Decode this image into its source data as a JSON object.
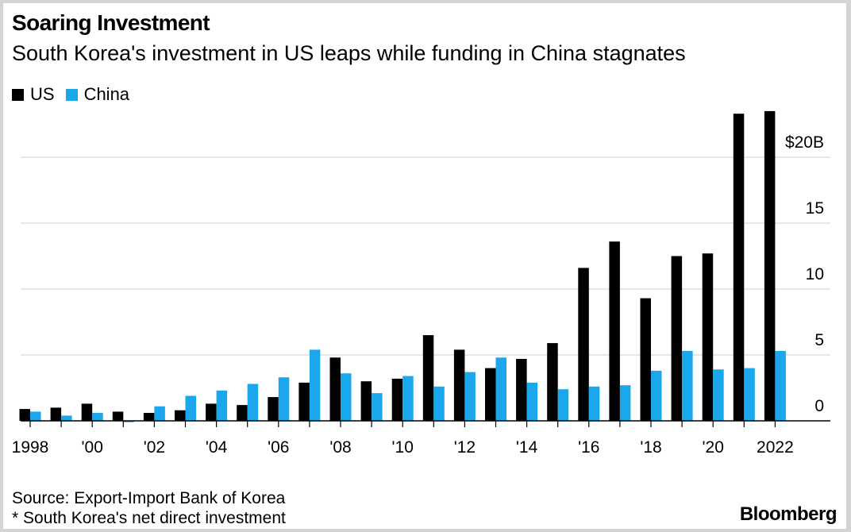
{
  "title": "Soaring Investment",
  "subtitle": "South Korea's investment in US leaps while funding in China stagnates",
  "legend": [
    {
      "label": "US",
      "color": "#000000"
    },
    {
      "label": "China",
      "color": "#1aa7ec"
    }
  ],
  "source": "Source: Export-Import Bank of Korea",
  "note": "* South Korea's net direct investment",
  "brand": "Bloomberg",
  "chart_data": {
    "type": "bar",
    "categories": [
      "1998",
      "1999",
      "2000",
      "2001",
      "2002",
      "2003",
      "2004",
      "2005",
      "2006",
      "2007",
      "2008",
      "2009",
      "2010",
      "2011",
      "2012",
      "2013",
      "2014",
      "2015",
      "2016",
      "2017",
      "2018",
      "2019",
      "2020",
      "2021",
      "2022"
    ],
    "x_tick_labels": [
      "1998",
      "",
      "'00",
      "",
      "'02",
      "",
      "'04",
      "",
      "'06",
      "",
      "'08",
      "",
      "'10",
      "",
      "'12",
      "",
      "'14",
      "",
      "'16",
      "",
      "'18",
      "",
      "'20",
      "",
      "2022"
    ],
    "series": [
      {
        "name": "US",
        "color": "#000000",
        "values": [
          0.9,
          1.0,
          1.3,
          0.7,
          0.6,
          0.8,
          1.3,
          1.2,
          1.8,
          2.9,
          4.8,
          3.0,
          3.2,
          6.5,
          5.4,
          4.0,
          4.7,
          5.9,
          11.6,
          13.6,
          9.3,
          12.5,
          12.7,
          23.3,
          23.5
        ]
      },
      {
        "name": "China",
        "color": "#1aa7ec",
        "values": [
          0.7,
          0.4,
          0.6,
          -0.1,
          1.1,
          1.9,
          2.3,
          2.8,
          3.3,
          5.4,
          3.6,
          2.1,
          3.4,
          2.6,
          3.7,
          4.8,
          2.9,
          2.4,
          2.6,
          2.7,
          3.8,
          5.3,
          3.9,
          4.0,
          5.3
        ]
      }
    ],
    "y_ticks": [
      {
        "value": 0,
        "label": "0"
      },
      {
        "value": 5,
        "label": "5"
      },
      {
        "value": 10,
        "label": "10"
      },
      {
        "value": 15,
        "label": "15"
      },
      {
        "value": 20,
        "label": "$20B"
      }
    ],
    "ylim": [
      -0.3,
      24
    ],
    "grid": true,
    "legend_position": "top-left",
    "y_axis_side": "right"
  }
}
